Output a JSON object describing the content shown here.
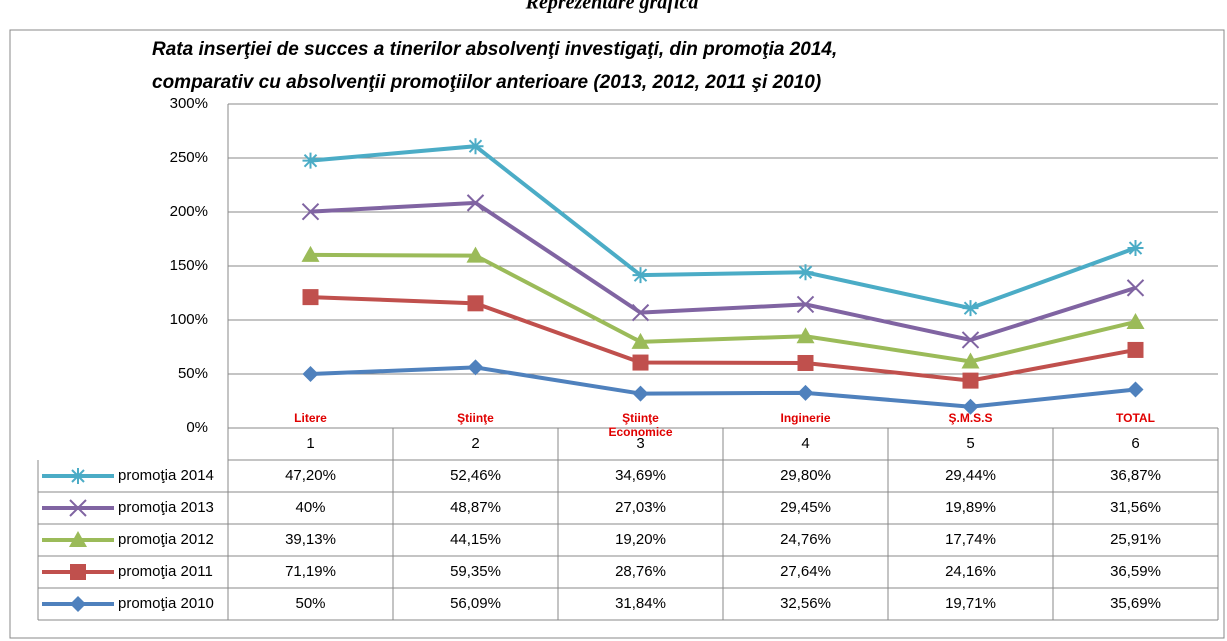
{
  "chart_data": {
    "type": "line",
    "heading": "Reprezentare grafică",
    "title_lines": [
      "Rata inserţiei de succes a tinerilor absolvenţi investigaţi, din promoţia 2014,",
      "comparativ cu absolvenţii promoţiilor anterioare (2013, 2012, 2011 şi 2010)"
    ],
    "stacked": true,
    "categories": [
      "1",
      "2",
      "3",
      "4",
      "5",
      "6"
    ],
    "annotations": [
      "Litere",
      "Ştiinţe",
      "Ştiinţe Economice",
      "Inginerie",
      "Ş.M.S.S",
      "TOTAL"
    ],
    "ylim": [
      0,
      300
    ],
    "yticks": [
      {
        "value": 0,
        "label": "0%"
      },
      {
        "value": 50,
        "label": "50%"
      },
      {
        "value": 100,
        "label": "100%"
      },
      {
        "value": 150,
        "label": "150%"
      },
      {
        "value": 200,
        "label": "200%"
      },
      {
        "value": 250,
        "label": "250%"
      },
      {
        "value": 300,
        "label": "300%"
      }
    ],
    "grid": true,
    "series": [
      {
        "name": "promoţia 2014",
        "color": "#4bacc6",
        "marker": "star",
        "values": [
          47.2,
          52.46,
          34.69,
          29.8,
          29.44,
          36.87
        ],
        "value_labels": [
          "47,20%",
          "52,46%",
          "34,69%",
          "29,80%",
          "29,44%",
          "36,87%"
        ]
      },
      {
        "name": "promoţia 2013",
        "color": "#8064a2",
        "marker": "x",
        "values": [
          40,
          48.87,
          27.03,
          29.45,
          19.89,
          31.56
        ],
        "value_labels": [
          "40%",
          "48,87%",
          "27,03%",
          "29,45%",
          "19,89%",
          "31,56%"
        ]
      },
      {
        "name": "promoţia 2012",
        "color": "#9bbb59",
        "marker": "triangle",
        "values": [
          39.13,
          44.15,
          19.2,
          24.76,
          17.74,
          25.91
        ],
        "value_labels": [
          "39,13%",
          "44,15%",
          "19,20%",
          "24,76%",
          "17,74%",
          "25,91%"
        ]
      },
      {
        "name": "promoţia 2011",
        "color": "#c0504d",
        "marker": "square",
        "values": [
          71.19,
          59.35,
          28.76,
          27.64,
          24.16,
          36.59
        ],
        "value_labels": [
          "71,19%",
          "59,35%",
          "28,76%",
          "27,64%",
          "24,16%",
          "36,59%"
        ]
      },
      {
        "name": "promoţia 2010",
        "color": "#4f81bd",
        "marker": "diamond",
        "values": [
          50,
          56.09,
          31.84,
          32.56,
          19.71,
          35.69
        ],
        "value_labels": [
          "50%",
          "56,09%",
          "31,84%",
          "32,56%",
          "19,71%",
          "35,69%"
        ]
      }
    ]
  }
}
